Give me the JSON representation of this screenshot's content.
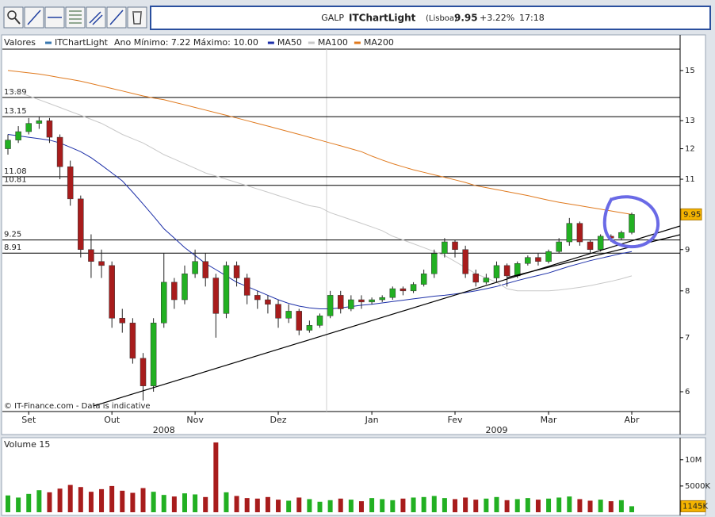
{
  "toolbar": {
    "symbol": "GALP",
    "product": "ITChartLight",
    "market": "(Lisboa)",
    "price": "9.95",
    "change": "+3.22%",
    "time": "17:18"
  },
  "chart_data": [
    {
      "type": "candlestick",
      "title": "Valores",
      "log_scale": true,
      "stats_text": "Ano Mínimo: 7.22 Máximo: 10.00",
      "note": "© IT-Finance.com - Data is indicative",
      "categories": [
        null,
        null,
        "Set",
        null,
        null,
        null,
        null,
        null,
        null,
        null,
        "Out",
        null,
        null,
        null,
        null,
        null,
        null,
        null,
        "Nov",
        null,
        null,
        null,
        null,
        null,
        null,
        null,
        "Dez",
        null,
        null,
        null,
        null,
        null,
        null,
        null,
        null,
        "Jan",
        null,
        null,
        null,
        null,
        null,
        null,
        null,
        "Fev",
        null,
        null,
        null,
        null,
        null,
        null,
        null,
        null,
        "Mar",
        null,
        null,
        null,
        null,
        null,
        null,
        null,
        "Abr"
      ],
      "years": [
        null,
        null,
        null,
        null,
        null,
        null,
        null,
        null,
        null,
        null,
        null,
        null,
        null,
        null,
        null,
        "2008",
        null,
        null,
        null,
        null,
        null,
        null,
        null,
        null,
        null,
        null,
        null,
        null,
        null,
        null,
        null,
        null,
        null,
        null,
        null,
        null,
        null,
        null,
        null,
        null,
        null,
        null,
        null,
        null,
        null,
        null,
        null,
        "2009",
        null,
        null,
        null,
        null,
        null,
        null,
        null,
        null,
        null,
        null,
        null,
        null,
        null
      ],
      "series": [
        {
          "name": "ITChartLight",
          "color": "#3a78b0",
          "up_color": "#22b022",
          "down_color": "#a81c1c",
          "open": [
            12.0,
            12.3,
            12.6,
            12.9,
            13.0,
            12.4,
            11.4,
            10.4,
            9.0,
            8.7,
            8.6,
            7.4,
            7.3,
            6.6,
            6.1,
            7.3,
            8.2,
            7.8,
            8.4,
            8.7,
            8.3,
            7.5,
            8.6,
            8.3,
            7.9,
            7.8,
            7.7,
            7.4,
            7.55,
            7.15,
            7.25,
            7.45,
            7.9,
            7.6,
            7.8,
            7.75,
            7.8,
            7.85,
            8.05,
            8.0,
            8.15,
            8.4,
            8.9,
            9.2,
            9.0,
            8.4,
            8.2,
            8.3,
            8.6,
            8.35,
            8.65,
            8.8,
            8.7,
            8.95,
            9.2,
            9.7,
            9.2,
            9.0,
            9.35,
            9.3,
            9.45
          ],
          "high": [
            12.5,
            12.8,
            13.1,
            13.15,
            13.1,
            12.5,
            11.6,
            10.5,
            9.4,
            9.0,
            8.7,
            7.6,
            7.4,
            6.7,
            7.4,
            8.9,
            8.3,
            8.6,
            9.0,
            8.9,
            8.4,
            8.7,
            8.7,
            8.4,
            8.0,
            7.9,
            7.8,
            7.7,
            7.6,
            7.35,
            7.5,
            8.0,
            8.0,
            7.9,
            7.9,
            7.85,
            7.9,
            8.1,
            8.1,
            8.2,
            8.5,
            9.0,
            9.3,
            9.25,
            9.1,
            8.5,
            8.4,
            8.7,
            8.65,
            8.7,
            8.85,
            8.9,
            9.0,
            9.3,
            9.85,
            9.75,
            9.25,
            9.4,
            9.4,
            9.5,
            10.0
          ],
          "low": [
            11.8,
            12.2,
            12.5,
            12.7,
            12.2,
            11.0,
            10.2,
            8.8,
            8.3,
            8.3,
            7.2,
            7.1,
            6.5,
            5.85,
            6.0,
            7.2,
            7.6,
            7.7,
            8.3,
            8.1,
            7.0,
            7.4,
            8.1,
            7.7,
            7.6,
            7.5,
            7.2,
            7.3,
            7.05,
            7.1,
            7.2,
            7.4,
            7.5,
            7.55,
            7.6,
            7.7,
            7.75,
            7.8,
            7.9,
            7.95,
            8.1,
            8.3,
            8.8,
            8.8,
            8.3,
            8.1,
            8.15,
            8.2,
            8.1,
            8.3,
            8.6,
            8.6,
            8.65,
            8.9,
            9.1,
            9.1,
            8.9,
            8.95,
            9.2,
            9.25,
            9.4
          ],
          "close": [
            12.3,
            12.6,
            12.9,
            13.0,
            12.4,
            11.4,
            10.4,
            9.0,
            8.7,
            8.6,
            7.4,
            7.3,
            6.6,
            6.1,
            7.3,
            8.2,
            7.8,
            8.4,
            8.7,
            8.3,
            7.5,
            8.6,
            8.3,
            7.9,
            7.8,
            7.7,
            7.4,
            7.55,
            7.15,
            7.25,
            7.45,
            7.9,
            7.6,
            7.8,
            7.75,
            7.8,
            7.85,
            8.05,
            8.0,
            8.15,
            8.4,
            8.9,
            9.2,
            9.0,
            8.4,
            8.2,
            8.3,
            8.6,
            8.35,
            8.65,
            8.8,
            8.7,
            8.95,
            9.2,
            9.7,
            9.2,
            9.0,
            9.35,
            9.3,
            9.45,
            9.95
          ]
        }
      ],
      "lines": [
        {
          "name": "MA50",
          "color": "#1c2fa8",
          "values": [
            12.5,
            12.45,
            12.4,
            12.35,
            12.3,
            12.2,
            12.05,
            11.9,
            11.7,
            11.45,
            11.2,
            10.95,
            10.6,
            10.25,
            9.9,
            9.55,
            9.3,
            9.05,
            8.85,
            8.65,
            8.5,
            8.35,
            8.2,
            8.1,
            8.0,
            7.9,
            7.8,
            7.72,
            7.66,
            7.62,
            7.6,
            7.6,
            7.62,
            7.65,
            7.68,
            7.7,
            7.73,
            7.76,
            7.79,
            7.82,
            7.85,
            7.88,
            7.9,
            7.93,
            7.96,
            8.0,
            8.05,
            8.1,
            8.17,
            8.24,
            8.3,
            8.36,
            8.42,
            8.5,
            8.58,
            8.65,
            8.72,
            8.78,
            8.84,
            8.9,
            8.95
          ]
        },
        {
          "name": "MA100",
          "color": "#c8c8c8",
          "values": [
            14.2,
            14.1,
            13.95,
            13.8,
            13.65,
            13.5,
            13.35,
            13.2,
            13.05,
            12.9,
            12.7,
            12.5,
            12.35,
            12.2,
            12.0,
            11.8,
            11.65,
            11.5,
            11.35,
            11.2,
            11.1,
            11.0,
            10.9,
            10.8,
            10.7,
            10.6,
            10.5,
            10.4,
            10.3,
            10.2,
            10.15,
            10.0,
            9.9,
            9.8,
            9.7,
            9.6,
            9.5,
            9.35,
            9.25,
            9.15,
            9.05,
            8.95,
            8.85,
            8.7,
            8.55,
            8.4,
            8.3,
            8.2,
            8.05,
            8.0,
            8.0,
            8.0,
            8.0,
            8.02,
            8.05,
            8.08,
            8.12,
            8.17,
            8.22,
            8.28,
            8.35
          ]
        },
        {
          "name": "MA200",
          "color": "#e07a1f",
          "values": [
            15.0,
            14.95,
            14.9,
            14.85,
            14.78,
            14.7,
            14.63,
            14.55,
            14.45,
            14.35,
            14.25,
            14.15,
            14.05,
            13.95,
            13.87,
            13.8,
            13.7,
            13.6,
            13.5,
            13.4,
            13.3,
            13.2,
            13.1,
            13.0,
            12.9,
            12.8,
            12.7,
            12.6,
            12.5,
            12.4,
            12.3,
            12.2,
            12.1,
            12.0,
            11.9,
            11.75,
            11.62,
            11.5,
            11.4,
            11.3,
            11.22,
            11.14,
            11.06,
            10.98,
            10.9,
            10.8,
            10.74,
            10.68,
            10.62,
            10.56,
            10.5,
            10.43,
            10.36,
            10.3,
            10.25,
            10.2,
            10.15,
            10.1,
            10.05,
            10.0,
            9.95
          ]
        }
      ],
      "levels": [
        13.89,
        13.15,
        11.08,
        10.81,
        9.25,
        8.91
      ],
      "last_value_color": "#f5b400",
      "ylim": [
        5.67,
        16.53
      ],
      "yticks": [
        6,
        7,
        8,
        9,
        11,
        12,
        13,
        15
      ]
    },
    {
      "type": "bar",
      "title": "Volume 15",
      "values": [
        3200000,
        2800000,
        3500000,
        4200000,
        3800000,
        4500000,
        5200000,
        4800000,
        3900000,
        4400000,
        5000000,
        4100000,
        3700000,
        4600000,
        3900000,
        3300000,
        3000000,
        3600000,
        3400000,
        2900000,
        13300000,
        3800000,
        3100000,
        2700000,
        2600000,
        2900000,
        2400000,
        2200000,
        2800000,
        2500000,
        2000000,
        2300000,
        2600000,
        2400000,
        2100000,
        2700000,
        2500000,
        2300000,
        2600000,
        2800000,
        2900000,
        3100000,
        2700000,
        2500000,
        2800000,
        2400000,
        2600000,
        2900000,
        2300000,
        2500000,
        2700000,
        2400000,
        2600000,
        2800000,
        3000000,
        2500000,
        2200000,
        2400000,
        2100000,
        2300000,
        1145000
      ],
      "value_labels": [
        null,
        null,
        null,
        null,
        null,
        null,
        null,
        null,
        null,
        null,
        null,
        null,
        null,
        null,
        null,
        null,
        null,
        null,
        null,
        null,
        null,
        null,
        null,
        null,
        null,
        null,
        null,
        null,
        null,
        null,
        null,
        null,
        null,
        null,
        null,
        null,
        null,
        null,
        null,
        null,
        null,
        null,
        null,
        null,
        null,
        null,
        null,
        null,
        null,
        null,
        null,
        null,
        null,
        null,
        null,
        null,
        null,
        null,
        null,
        null,
        "1145K"
      ],
      "ylim": [
        0,
        14200000
      ],
      "yticks": [
        {
          "value": 5000000,
          "label": "5000K"
        },
        {
          "value": 10000000,
          "label": "10M"
        }
      ]
    }
  ]
}
